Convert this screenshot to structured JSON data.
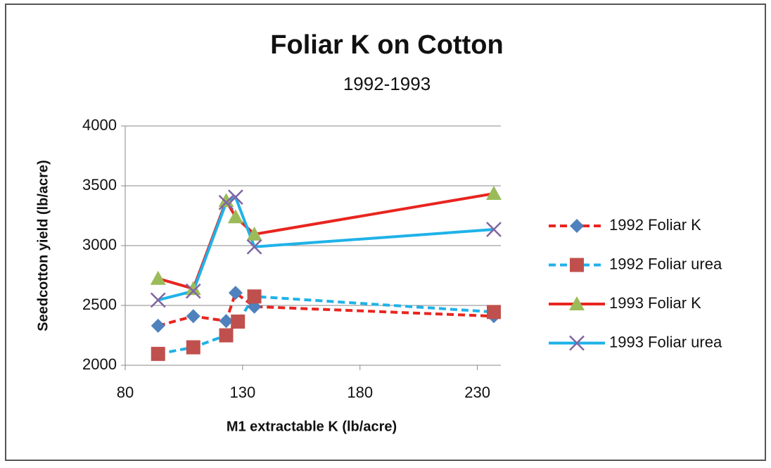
{
  "chart_data": {
    "type": "line",
    "title": "Foliar K on Cotton",
    "subtitle": "1992-1993",
    "x_label": "M1 extractable K (lb/acre)",
    "y_label": "Seedcotton yield (lb/acre)",
    "xlim": [
      80,
      240
    ],
    "xticks": [
      80,
      130,
      180,
      230
    ],
    "ylim": [
      2000,
      4000
    ],
    "yticks": [
      2000,
      2500,
      3000,
      3500,
      4000
    ],
    "grid": true,
    "legend": "right",
    "series": [
      {
        "name": "1992 Foliar K",
        "line_color": "#e8251f",
        "marker_color": "#4f81bd",
        "marker": "diamond",
        "dashed": true,
        "x": [
          94,
          109,
          123,
          127,
          135,
          237
        ],
        "values": [
          2330,
          2410,
          2370,
          2605,
          2490,
          2410
        ]
      },
      {
        "name": "1992 Foliar urea",
        "line_color": "#1fb2e8",
        "marker_color": "#c0504d",
        "marker": "square",
        "dashed": true,
        "x": [
          94,
          109,
          123,
          128,
          135,
          237
        ],
        "values": [
          2095,
          2150,
          2250,
          2365,
          2575,
          2445
        ]
      },
      {
        "name": "1993 Foliar K",
        "line_color": "#e8251f",
        "marker_color": "#9bbb59",
        "marker": "triangle",
        "dashed": false,
        "x": [
          94,
          109,
          123,
          127,
          135,
          237
        ],
        "values": [
          2725,
          2640,
          3375,
          3240,
          3095,
          3435
        ]
      },
      {
        "name": "1993 Foliar urea",
        "line_color": "#1fb2e8",
        "marker_color": "#8064a2",
        "marker": "x",
        "dashed": false,
        "x": [
          94,
          109,
          123,
          127,
          135,
          237
        ],
        "values": [
          2545,
          2620,
          3360,
          3405,
          2990,
          3135
        ]
      }
    ]
  }
}
